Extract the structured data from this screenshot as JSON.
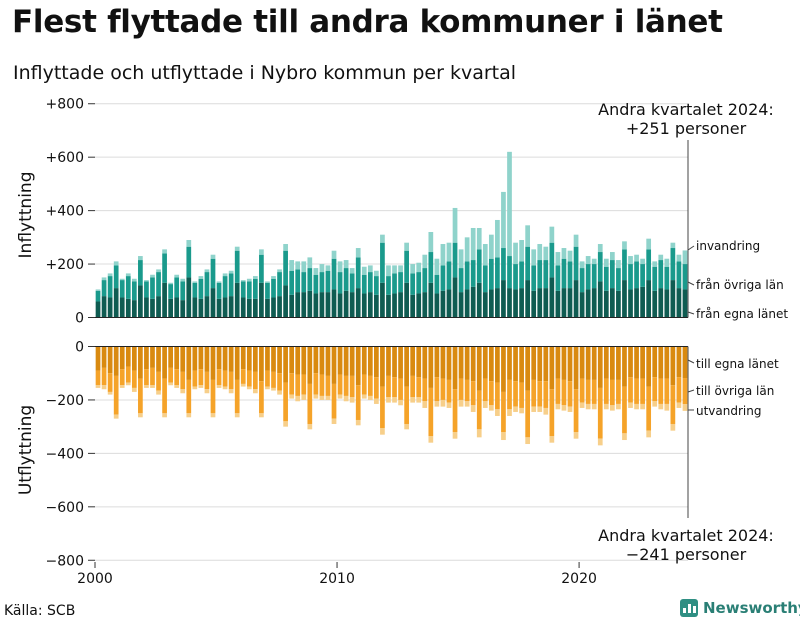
{
  "title": "Flest flyttade till andra kommuner i länet",
  "subtitle": "Inflyttade och utflyttade i Nybro kommun per kvartal",
  "source": "Källa: SCB",
  "brand": {
    "name": "Newsworthy",
    "icon": "bar-chart-logo-icon"
  },
  "colors": {
    "in_egna": "#0f5c52",
    "in_ovriga": "#1a9a8c",
    "in_invandring": "#8fd3cb",
    "ut_egna": "#d98a10",
    "ut_ovriga": "#f5a329",
    "ut_utvandring": "#f7cf8a",
    "grid": "#dcdcdc",
    "axis": "#333333"
  },
  "chart_data": {
    "type": "bar",
    "stacked": true,
    "x_axis": {
      "label": "",
      "ticks": [
        "2000",
        "2010",
        "2020"
      ],
      "start": "2000 Q1",
      "end": "2024 Q2"
    },
    "y_axis": {
      "range": [
        -800,
        800
      ],
      "ticks": [
        "+800",
        "+600",
        "+400",
        "+200",
        "0",
        "−200",
        "−400",
        "−600",
        "−800"
      ]
    },
    "panels": {
      "top_label": "Inflyttning",
      "bottom_label": "Utflyttning"
    },
    "annotations": {
      "top": [
        "Andra kvartalet 2024:",
        "+251 personer"
      ],
      "bottom": [
        "Andra kvartalet 2024:",
        "−241 personer"
      ]
    },
    "quarters": [
      "2000 Q1",
      "2000 Q2",
      "2000 Q3",
      "2000 Q4",
      "2001 Q1",
      "2001 Q2",
      "2001 Q3",
      "2001 Q4",
      "2002 Q1",
      "2002 Q2",
      "2002 Q3",
      "2002 Q4",
      "2003 Q1",
      "2003 Q2",
      "2003 Q3",
      "2003 Q4",
      "2004 Q1",
      "2004 Q2",
      "2004 Q3",
      "2004 Q4",
      "2005 Q1",
      "2005 Q2",
      "2005 Q3",
      "2005 Q4",
      "2006 Q1",
      "2006 Q2",
      "2006 Q3",
      "2006 Q4",
      "2007 Q1",
      "2007 Q2",
      "2007 Q3",
      "2007 Q4",
      "2008 Q1",
      "2008 Q2",
      "2008 Q3",
      "2008 Q4",
      "2009 Q1",
      "2009 Q2",
      "2009 Q3",
      "2009 Q4",
      "2010 Q1",
      "2010 Q2",
      "2010 Q3",
      "2010 Q4",
      "2011 Q1",
      "2011 Q2",
      "2011 Q3",
      "2011 Q4",
      "2012 Q1",
      "2012 Q2",
      "2012 Q3",
      "2012 Q4",
      "2013 Q1",
      "2013 Q2",
      "2013 Q3",
      "2013 Q4",
      "2014 Q1",
      "2014 Q2",
      "2014 Q3",
      "2014 Q4",
      "2015 Q1",
      "2015 Q2",
      "2015 Q3",
      "2015 Q4",
      "2016 Q1",
      "2016 Q2",
      "2016 Q3",
      "2016 Q4",
      "2017 Q1",
      "2017 Q2",
      "2017 Q3",
      "2017 Q4",
      "2018 Q1",
      "2018 Q2",
      "2018 Q3",
      "2018 Q4",
      "2019 Q1",
      "2019 Q2",
      "2019 Q3",
      "2019 Q4",
      "2020 Q1",
      "2020 Q2",
      "2020 Q3",
      "2020 Q4",
      "2021 Q1",
      "2021 Q2",
      "2021 Q3",
      "2021 Q4",
      "2022 Q1",
      "2022 Q2",
      "2022 Q3",
      "2022 Q4",
      "2023 Q1",
      "2023 Q2",
      "2023 Q3",
      "2023 Q4",
      "2024 Q1",
      "2024 Q2"
    ],
    "inflyttning": [
      {
        "name": "från egna länet",
        "values": [
          60,
          80,
          75,
          110,
          75,
          70,
          65,
          120,
          75,
          70,
          80,
          130,
          70,
          75,
          65,
          150,
          75,
          70,
          80,
          110,
          70,
          75,
          80,
          130,
          75,
          70,
          70,
          130,
          70,
          75,
          80,
          120,
          85,
          95,
          95,
          100,
          90,
          95,
          95,
          105,
          90,
          100,
          95,
          110,
          90,
          95,
          85,
          130,
          85,
          90,
          95,
          130,
          85,
          90,
          95,
          130,
          90,
          100,
          105,
          150,
          95,
          105,
          115,
          130,
          95,
          105,
          110,
          140,
          110,
          105,
          110,
          140,
          100,
          110,
          110,
          150,
          100,
          110,
          110,
          140,
          95,
          105,
          110,
          135,
          100,
          110,
          100,
          140,
          105,
          110,
          115,
          140,
          100,
          110,
          105,
          140,
          110,
          105
        ]
      },
      {
        "name": "från övriga län",
        "values": [
          40,
          60,
          80,
          85,
          65,
          85,
          70,
          95,
          60,
          80,
          90,
          110,
          55,
          75,
          70,
          115,
          55,
          75,
          90,
          110,
          60,
          80,
          85,
          120,
          60,
          65,
          75,
          105,
          60,
          70,
          90,
          130,
          90,
          85,
          75,
          85,
          70,
          75,
          80,
          115,
          80,
          85,
          70,
          115,
          70,
          75,
          70,
          150,
          70,
          75,
          75,
          120,
          80,
          80,
          90,
          115,
          70,
          95,
          105,
          130,
          90,
          105,
          100,
          125,
          100,
          115,
          115,
          120,
          120,
          95,
          100,
          125,
          95,
          105,
          105,
          130,
          95,
          110,
          100,
          125,
          90,
          95,
          90,
          110,
          90,
          105,
          85,
          115,
          95,
          100,
          85,
          115,
          90,
          105,
          85,
          120,
          100,
          95
        ]
      },
      {
        "name": "invandring",
        "values": [
          5,
          10,
          10,
          15,
          5,
          10,
          10,
          15,
          5,
          10,
          10,
          15,
          5,
          10,
          10,
          25,
          5,
          10,
          10,
          15,
          5,
          10,
          10,
          15,
          5,
          10,
          10,
          20,
          5,
          10,
          10,
          25,
          40,
          30,
          40,
          40,
          25,
          30,
          20,
          30,
          40,
          30,
          20,
          35,
          30,
          25,
          20,
          30,
          40,
          30,
          25,
          30,
          35,
          35,
          50,
          75,
          60,
          80,
          70,
          130,
          70,
          90,
          120,
          80,
          80,
          90,
          140,
          210,
          390,
          80,
          80,
          80,
          60,
          60,
          50,
          60,
          50,
          40,
          40,
          45,
          25,
          30,
          20,
          30,
          30,
          30,
          30,
          30,
          30,
          25,
          20,
          40,
          20,
          20,
          30,
          20,
          25,
          51
        ]
      }
    ],
    "utflyttning": [
      {
        "name": "till egna länet",
        "values": [
          90,
          80,
          100,
          110,
          85,
          75,
          90,
          120,
          85,
          80,
          95,
          120,
          80,
          85,
          95,
          125,
          90,
          85,
          95,
          125,
          85,
          90,
          95,
          125,
          85,
          90,
          95,
          130,
          90,
          95,
          100,
          135,
          100,
          105,
          105,
          140,
          100,
          105,
          110,
          140,
          105,
          110,
          110,
          145,
          105,
          110,
          115,
          150,
          110,
          115,
          120,
          150,
          110,
          115,
          120,
          155,
          115,
          120,
          125,
          160,
          120,
          125,
          130,
          165,
          120,
          130,
          135,
          170,
          125,
          130,
          135,
          165,
          125,
          130,
          130,
          160,
          120,
          125,
          130,
          160,
          120,
          125,
          125,
          155,
          120,
          125,
          125,
          150,
          115,
          120,
          120,
          150,
          115,
          120,
          120,
          145,
          115,
          118
        ]
      },
      {
        "name": "till övriga län",
        "values": [
          55,
          65,
          70,
          145,
          60,
          60,
          65,
          130,
          60,
          65,
          70,
          130,
          55,
          60,
          65,
          125,
          60,
          60,
          65,
          125,
          60,
          60,
          65,
          125,
          55,
          60,
          65,
          120,
          60,
          60,
          65,
          145,
          80,
          80,
          75,
          150,
          80,
          80,
          75,
          130,
          75,
          75,
          80,
          130,
          75,
          75,
          80,
          155,
          80,
          75,
          80,
          140,
          80,
          75,
          85,
          180,
          90,
          80,
          85,
          160,
          80,
          80,
          90,
          145,
          85,
          90,
          100,
          150,
          110,
          95,
          95,
          175,
          100,
          95,
          100,
          175,
          95,
          95,
          95,
          160,
          90,
          90,
          90,
          190,
          95,
          95,
          90,
          175,
          95,
          95,
          95,
          165,
          90,
          95,
          95,
          145,
          95,
          98
        ]
      },
      {
        "name": "utvandring",
        "values": [
          10,
          15,
          10,
          15,
          10,
          10,
          15,
          15,
          10,
          10,
          15,
          15,
          10,
          10,
          15,
          15,
          10,
          10,
          15,
          15,
          10,
          10,
          15,
          15,
          10,
          10,
          15,
          15,
          10,
          10,
          15,
          20,
          15,
          20,
          20,
          20,
          15,
          15,
          15,
          20,
          15,
          20,
          20,
          20,
          15,
          15,
          20,
          25,
          20,
          20,
          20,
          20,
          20,
          20,
          25,
          25,
          20,
          25,
          20,
          25,
          25,
          20,
          25,
          30,
          25,
          20,
          25,
          30,
          25,
          20,
          20,
          25,
          20,
          20,
          25,
          25,
          20,
          20,
          20,
          25,
          20,
          20,
          20,
          25,
          20,
          20,
          20,
          25,
          20,
          20,
          20,
          25,
          20,
          20,
          25,
          25,
          20,
          25
        ]
      }
    ],
    "legend_top": [
      "invandring",
      "från övriga län",
      "från egna länet"
    ],
    "legend_bottom": [
      "till egna länet",
      "till övriga län",
      "utvandring"
    ],
    "grid": true
  }
}
